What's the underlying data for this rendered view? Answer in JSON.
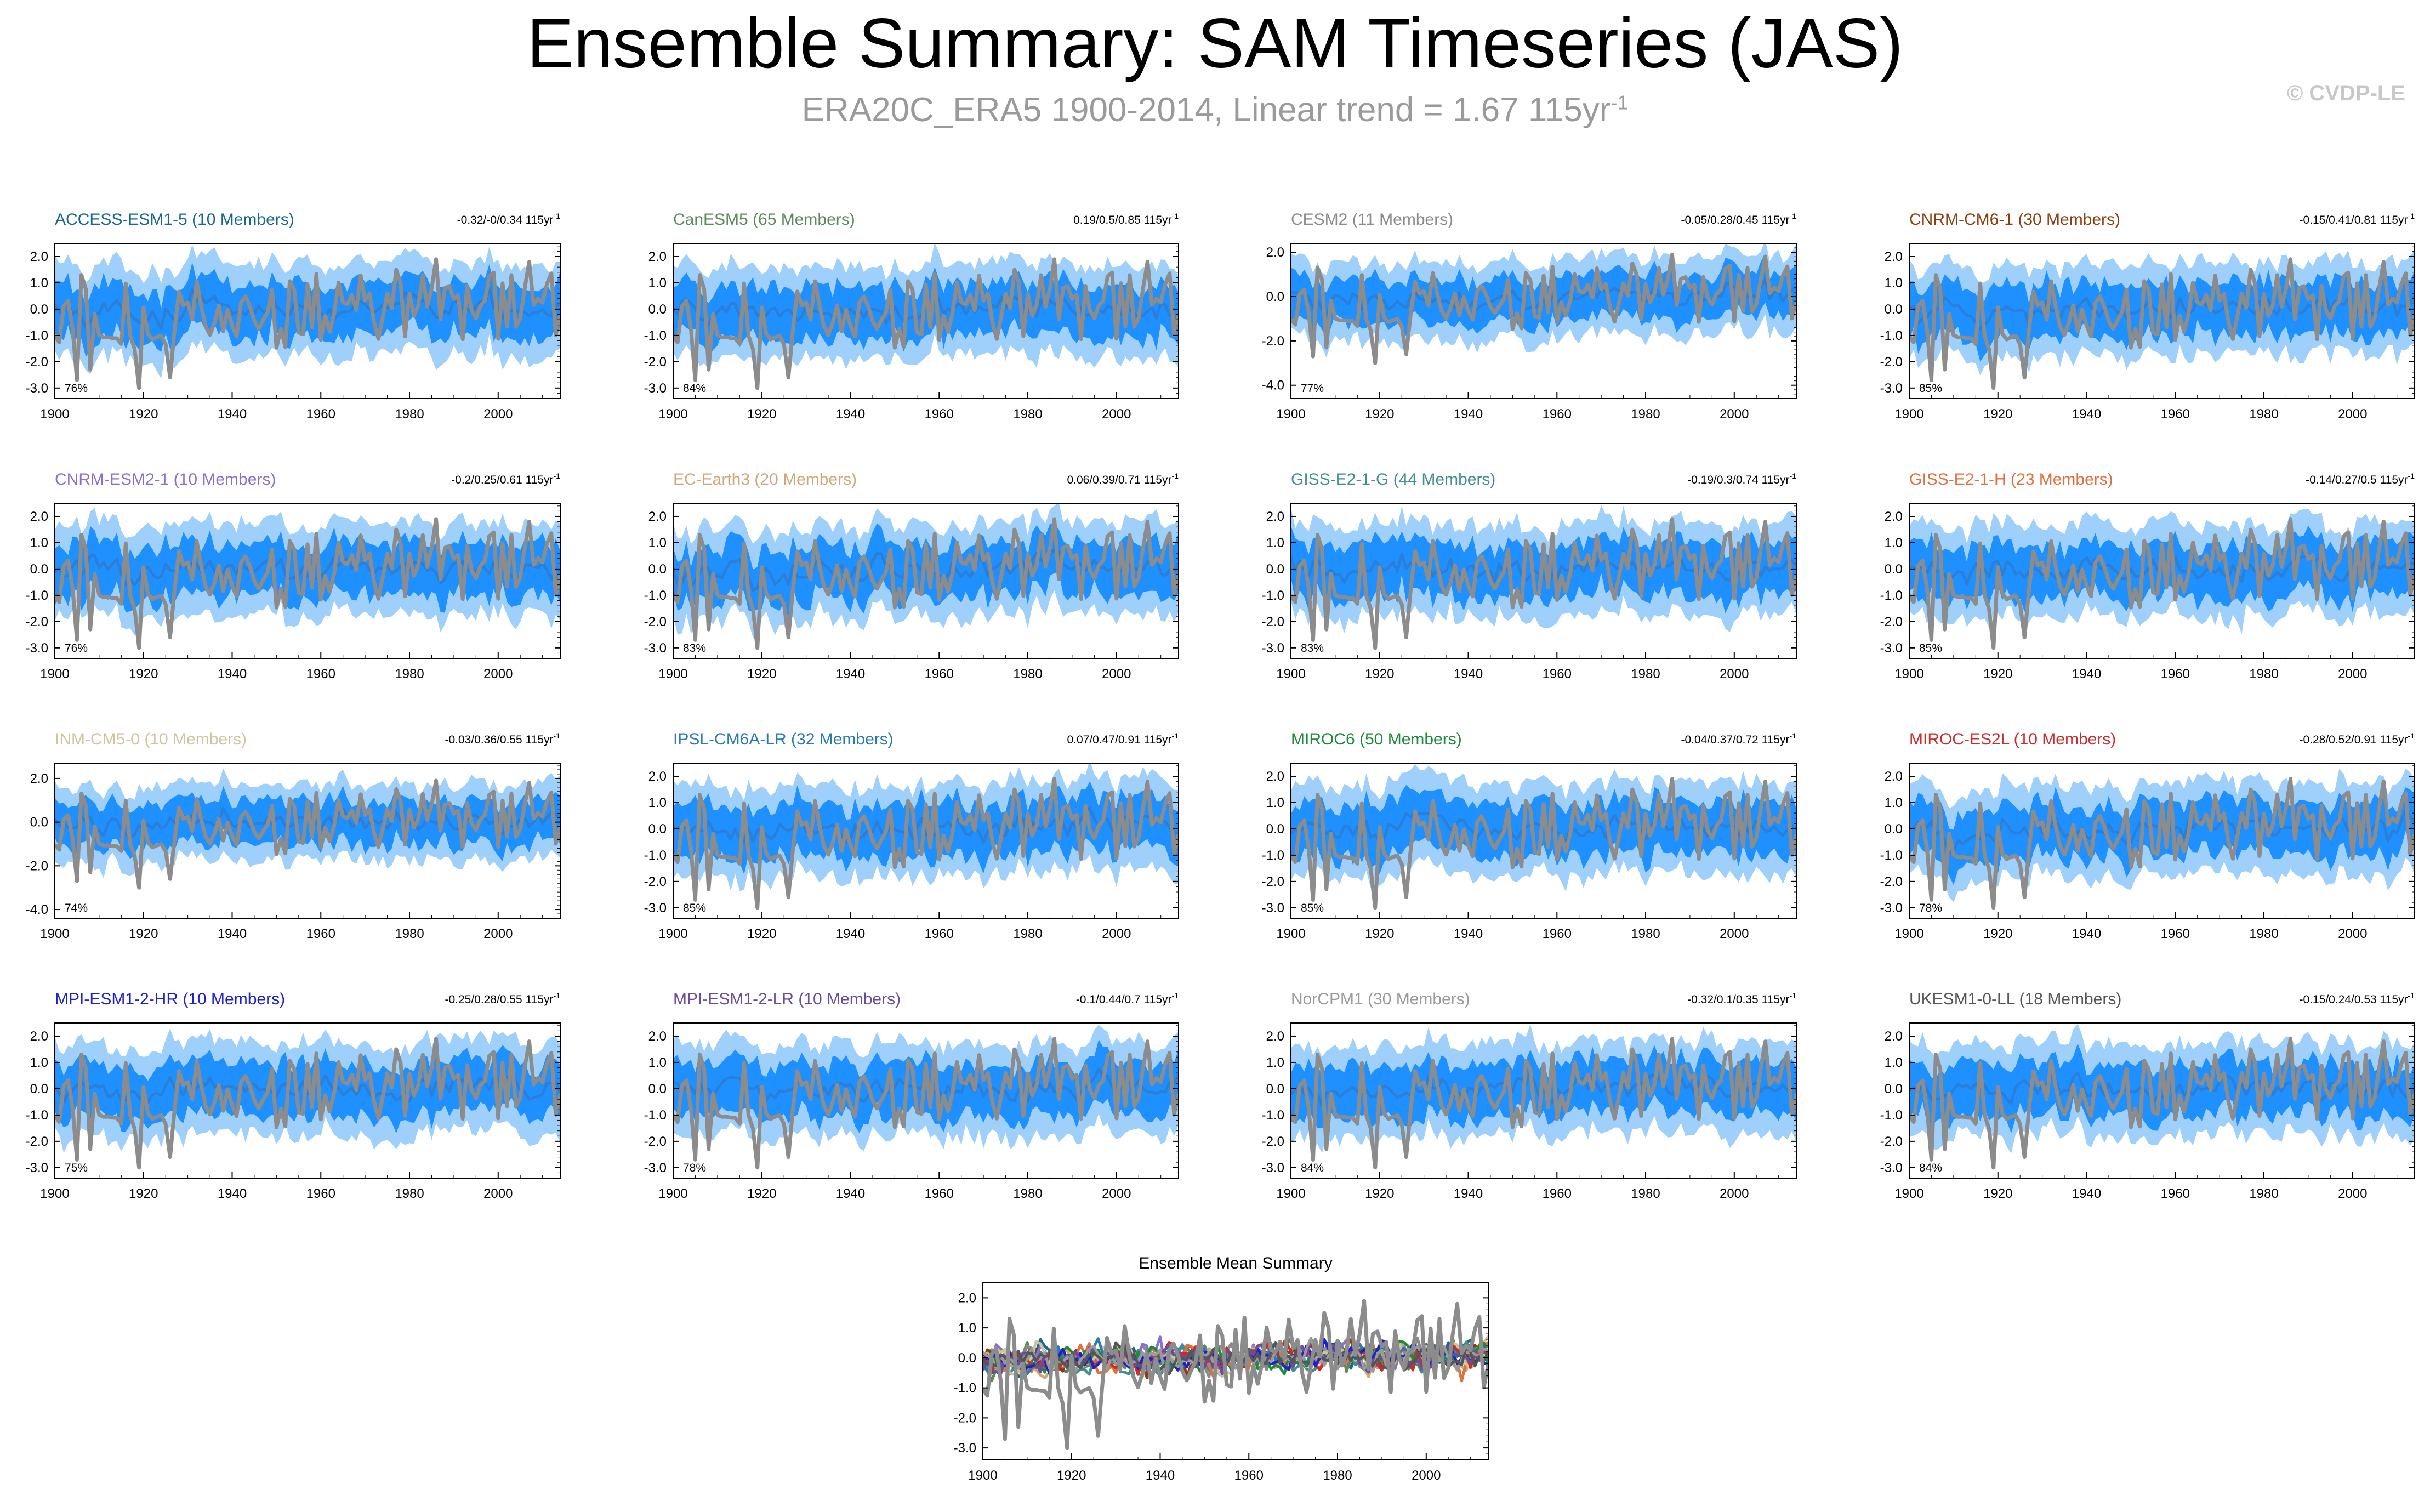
{
  "header": {
    "title": "Ensemble Summary: SAM Timeseries (JAS)",
    "subtitle": "ERA20C_ERA5 1900-2014, Linear trend = 1.67 115yr",
    "subtitle_sup": "-1",
    "watermark": "© CVDP-LE"
  },
  "colors": {
    "outer_band": "#9fd0fb",
    "inner_band": "#1e90ff",
    "ensemble_mean": "#2b7fd6",
    "observations": "#8c8c8c"
  },
  "trend_unit": "115yr",
  "trend_unit_sup": "-1",
  "chart_data": [
    {
      "type": "area",
      "title": "ACCESS-ESM1-5 (10 Members)",
      "title_color": "#17688b",
      "trend": "-0.32/-0/0.34",
      "percent": "76%",
      "xlim": [
        1900,
        2014
      ],
      "x_ticks": [
        1900,
        1920,
        1940,
        1960,
        1980,
        2000
      ],
      "ylim": [
        -3.4,
        2.5
      ],
      "y_ticks": [
        "2.0",
        "1.0",
        "0.0",
        "-1.0",
        "-2.0",
        "-3.0"
      ],
      "series": [
        {
          "name": "",
          "role": "observations"
        },
        {
          "name": "",
          "role": "ensemble-mean"
        }
      ]
    },
    {
      "type": "area",
      "title": "CanESM5 (65 Members)",
      "title_color": "#5c8a5c",
      "trend": "0.19/0.5/0.85",
      "percent": "84%",
      "xlim": [
        1900,
        2014
      ],
      "x_ticks": [
        1900,
        1920,
        1940,
        1960,
        1980,
        2000
      ],
      "ylim": [
        -3.4,
        2.5
      ],
      "y_ticks": [
        "2.0",
        "1.0",
        "0.0",
        "-1.0",
        "-2.0",
        "-3.0"
      ],
      "series": [
        {
          "name": "",
          "role": "observations"
        },
        {
          "name": "",
          "role": "ensemble-mean"
        }
      ]
    },
    {
      "type": "area",
      "title": "CESM2 (11 Members)",
      "title_color": "#8a8a8a",
      "trend": "-0.05/0.28/0.45",
      "percent": "77%",
      "xlim": [
        1900,
        2014
      ],
      "x_ticks": [
        1900,
        1920,
        1940,
        1960,
        1980,
        2000
      ],
      "ylim": [
        -4.6,
        2.4
      ],
      "y_ticks": [
        "2.0",
        "0.0",
        "-2.0",
        "-4.0"
      ],
      "series": [
        {
          "name": "",
          "role": "observations"
        },
        {
          "name": "",
          "role": "ensemble-mean"
        }
      ]
    },
    {
      "type": "area",
      "title": "CNRM-CM6-1 (30 Members)",
      "title_color": "#8b3e0f",
      "trend": "-0.15/0.41/0.81",
      "percent": "85%",
      "xlim": [
        1900,
        2014
      ],
      "x_ticks": [
        1900,
        1920,
        1940,
        1960,
        1980,
        2000
      ],
      "ylim": [
        -3.4,
        2.5
      ],
      "y_ticks": [
        "2.0",
        "1.0",
        "0.0",
        "-1.0",
        "-2.0",
        "-3.0"
      ],
      "series": [
        {
          "name": "",
          "role": "observations"
        },
        {
          "name": "",
          "role": "ensemble-mean"
        }
      ]
    },
    {
      "type": "area",
      "title": "CNRM-ESM2-1 (10 Members)",
      "title_color": "#8a6fd1",
      "trend": "-0.2/0.25/0.61",
      "percent": "76%",
      "xlim": [
        1900,
        2014
      ],
      "x_ticks": [
        1900,
        1920,
        1940,
        1960,
        1980,
        2000
      ],
      "ylim": [
        -3.4,
        2.5
      ],
      "y_ticks": [
        "2.0",
        "1.0",
        "0.0",
        "-1.0",
        "-2.0",
        "-3.0"
      ],
      "series": [
        {
          "name": "",
          "role": "observations"
        },
        {
          "name": "",
          "role": "ensemble-mean"
        }
      ]
    },
    {
      "type": "area",
      "title": "EC-Earth3 (20 Members)",
      "title_color": "#d0a878",
      "trend": "0.06/0.39/0.71",
      "percent": "83%",
      "xlim": [
        1900,
        2014
      ],
      "x_ticks": [
        1900,
        1920,
        1940,
        1960,
        1980,
        2000
      ],
      "ylim": [
        -3.4,
        2.5
      ],
      "y_ticks": [
        "2.0",
        "1.0",
        "0.0",
        "-1.0",
        "-2.0",
        "-3.0"
      ],
      "series": [
        {
          "name": "",
          "role": "observations"
        },
        {
          "name": "",
          "role": "ensemble-mean"
        }
      ]
    },
    {
      "type": "area",
      "title": "GISS-E2-1-G (44 Members)",
      "title_color": "#3f8f8c",
      "trend": "-0.19/0.3/0.74",
      "percent": "83%",
      "xlim": [
        1900,
        2014
      ],
      "x_ticks": [
        1900,
        1920,
        1940,
        1960,
        1980,
        2000
      ],
      "ylim": [
        -3.4,
        2.5
      ],
      "y_ticks": [
        "2.0",
        "1.0",
        "0.0",
        "-1.0",
        "-2.0",
        "-3.0"
      ],
      "series": [
        {
          "name": "",
          "role": "observations"
        },
        {
          "name": "",
          "role": "ensemble-mean"
        }
      ]
    },
    {
      "type": "area",
      "title": "GISS-E2-1-H (23 Members)",
      "title_color": "#e07040",
      "trend": "-0.14/0.27/0.5",
      "percent": "85%",
      "xlim": [
        1900,
        2014
      ],
      "x_ticks": [
        1900,
        1920,
        1940,
        1960,
        1980,
        2000
      ],
      "ylim": [
        -3.4,
        2.5
      ],
      "y_ticks": [
        "2.0",
        "1.0",
        "0.0",
        "-1.0",
        "-2.0",
        "-3.0"
      ],
      "series": [
        {
          "name": "",
          "role": "observations"
        },
        {
          "name": "",
          "role": "ensemble-mean"
        }
      ]
    },
    {
      "type": "area",
      "title": "INM-CM5-0 (10 Members)",
      "title_color": "#cfc3a0",
      "trend": "-0.03/0.36/0.55",
      "percent": "74%",
      "xlim": [
        1900,
        2014
      ],
      "x_ticks": [
        1900,
        1920,
        1940,
        1960,
        1980,
        2000
      ],
      "ylim": [
        -4.4,
        2.7
      ],
      "y_ticks": [
        "2.0",
        "0.0",
        "-2.0",
        "-4.0"
      ],
      "series": [
        {
          "name": "",
          "role": "observations"
        },
        {
          "name": "",
          "role": "ensemble-mean"
        }
      ]
    },
    {
      "type": "area",
      "title": "IPSL-CM6A-LR (32 Members)",
      "title_color": "#2a7ab8",
      "trend": "0.07/0.47/0.91",
      "percent": "85%",
      "xlim": [
        1900,
        2014
      ],
      "x_ticks": [
        1900,
        1920,
        1940,
        1960,
        1980,
        2000
      ],
      "ylim": [
        -3.4,
        2.5
      ],
      "y_ticks": [
        "2.0",
        "1.0",
        "0.0",
        "-1.0",
        "-2.0",
        "-3.0"
      ],
      "series": [
        {
          "name": "",
          "role": "observations"
        },
        {
          "name": "",
          "role": "ensemble-mean"
        }
      ]
    },
    {
      "type": "area",
      "title": "MIROC6 (50 Members)",
      "title_color": "#1e8a3c",
      "trend": "-0.04/0.37/0.72",
      "percent": "85%",
      "xlim": [
        1900,
        2014
      ],
      "x_ticks": [
        1900,
        1920,
        1940,
        1960,
        1980,
        2000
      ],
      "ylim": [
        -3.4,
        2.5
      ],
      "y_ticks": [
        "2.0",
        "1.0",
        "0.0",
        "-1.0",
        "-2.0",
        "-3.0"
      ],
      "series": [
        {
          "name": "",
          "role": "observations"
        },
        {
          "name": "",
          "role": "ensemble-mean"
        }
      ]
    },
    {
      "type": "area",
      "title": "MIROC-ES2L (10 Members)",
      "title_color": "#cc2b2b",
      "trend": "-0.28/0.52/0.91",
      "percent": "78%",
      "xlim": [
        1900,
        2014
      ],
      "x_ticks": [
        1900,
        1920,
        1940,
        1960,
        1980,
        2000
      ],
      "ylim": [
        -3.4,
        2.5
      ],
      "y_ticks": [
        "2.0",
        "1.0",
        "0.0",
        "-1.0",
        "-2.0",
        "-3.0"
      ],
      "series": [
        {
          "name": "",
          "role": "observations"
        },
        {
          "name": "",
          "role": "ensemble-mean"
        }
      ]
    },
    {
      "type": "area",
      "title": "MPI-ESM1-2-HR (10 Members)",
      "title_color": "#1f1fd0",
      "trend": "-0.25/0.28/0.55",
      "percent": "75%",
      "xlim": [
        1900,
        2014
      ],
      "x_ticks": [
        1900,
        1920,
        1940,
        1960,
        1980,
        2000
      ],
      "ylim": [
        -3.4,
        2.5
      ],
      "y_ticks": [
        "2.0",
        "1.0",
        "0.0",
        "-1.0",
        "-2.0",
        "-3.0"
      ],
      "series": [
        {
          "name": "",
          "role": "observations"
        },
        {
          "name": "",
          "role": "ensemble-mean"
        }
      ]
    },
    {
      "type": "area",
      "title": "MPI-ESM1-2-LR (10 Members)",
      "title_color": "#6a4c9c",
      "trend": "-0.1/0.44/0.7",
      "percent": "78%",
      "xlim": [
        1900,
        2014
      ],
      "x_ticks": [
        1900,
        1920,
        1940,
        1960,
        1980,
        2000
      ],
      "ylim": [
        -3.4,
        2.5
      ],
      "y_ticks": [
        "2.0",
        "1.0",
        "0.0",
        "-1.0",
        "-2.0",
        "-3.0"
      ],
      "series": [
        {
          "name": "",
          "role": "observations"
        },
        {
          "name": "",
          "role": "ensemble-mean"
        }
      ]
    },
    {
      "type": "area",
      "title": "NorCPM1 (30 Members)",
      "title_color": "#9a9a9a",
      "trend": "-0.32/0.1/0.35",
      "percent": "84%",
      "xlim": [
        1900,
        2014
      ],
      "x_ticks": [
        1900,
        1920,
        1940,
        1960,
        1980,
        2000
      ],
      "ylim": [
        -3.4,
        2.5
      ],
      "y_ticks": [
        "2.0",
        "1.0",
        "0.0",
        "-1.0",
        "-2.0",
        "-3.0"
      ],
      "series": [
        {
          "name": "",
          "role": "observations"
        },
        {
          "name": "",
          "role": "ensemble-mean"
        }
      ]
    },
    {
      "type": "area",
      "title": "UKESM1-0-LL (18 Members)",
      "title_color": "#555555",
      "trend": "-0.15/0.24/0.53",
      "percent": "84%",
      "xlim": [
        1900,
        2014
      ],
      "x_ticks": [
        1900,
        1920,
        1940,
        1960,
        1980,
        2000
      ],
      "ylim": [
        -3.4,
        2.5
      ],
      "y_ticks": [
        "2.0",
        "1.0",
        "0.0",
        "-1.0",
        "-2.0",
        "-3.0"
      ],
      "series": [
        {
          "name": "",
          "role": "observations"
        },
        {
          "name": "",
          "role": "ensemble-mean"
        }
      ]
    },
    {
      "type": "line",
      "title": "Ensemble Mean Summary",
      "title_color": "#000000",
      "xlim": [
        1900,
        2014
      ],
      "x_ticks": [
        1900,
        1920,
        1940,
        1960,
        1980,
        2000
      ],
      "ylim": [
        -3.4,
        2.5
      ],
      "y_ticks": [
        "2.0",
        "1.0",
        "0.0",
        "-1.0",
        "-2.0",
        "-3.0"
      ],
      "series_colors": [
        "#17688b",
        "#5c8a5c",
        "#8a8a8a",
        "#8b3e0f",
        "#8a6fd1",
        "#d0a878",
        "#3f8f8c",
        "#e07040",
        "#cfc3a0",
        "#2a7ab8",
        "#1e8a3c",
        "#cc2b2b",
        "#1f1fd0",
        "#6a4c9c",
        "#9a9a9a",
        "#555555"
      ]
    }
  ]
}
